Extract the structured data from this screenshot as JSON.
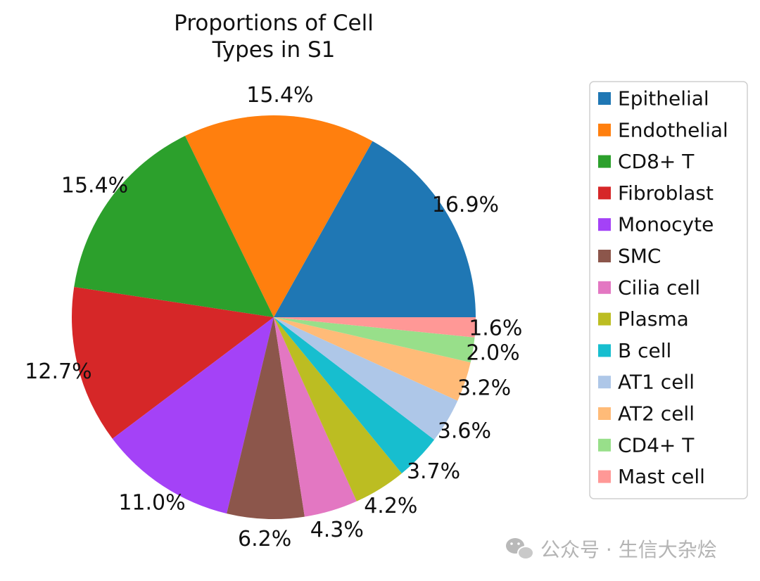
{
  "chart_data": {
    "type": "pie",
    "title": [
      "Proportions of Cell",
      "Types in S1"
    ],
    "start_angle_deg": 0,
    "direction": "counterclockwise",
    "legend_position": "right",
    "slices": [
      {
        "label": "Epithelial",
        "value": 16.9,
        "pct_label": "16.9%",
        "color": "#1f77b4"
      },
      {
        "label": "Endothelial",
        "value": 15.4,
        "pct_label": "15.4%",
        "color": "#ff7f0e"
      },
      {
        "label": "CD8+ T",
        "value": 15.4,
        "pct_label": "15.4%",
        "color": "#2ca02c"
      },
      {
        "label": "Fibroblast",
        "value": 12.7,
        "pct_label": "12.7%",
        "color": "#d62728"
      },
      {
        "label": "Monocyte",
        "value": 11.0,
        "pct_label": "11.0%",
        "color": "#a442f7"
      },
      {
        "label": "SMC",
        "value": 6.2,
        "pct_label": "6.2%",
        "color": "#8c564b"
      },
      {
        "label": "Cilia cell",
        "value": 4.3,
        "pct_label": "4.3%",
        "color": "#e377c2"
      },
      {
        "label": "Plasma",
        "value": 4.2,
        "pct_label": "4.2%",
        "color": "#bcbd22"
      },
      {
        "label": "B cell",
        "value": 3.7,
        "pct_label": "3.7%",
        "color": "#17becf"
      },
      {
        "label": "AT1 cell",
        "value": 3.6,
        "pct_label": "3.6%",
        "color": "#aec7e8"
      },
      {
        "label": "AT2 cell",
        "value": 3.2,
        "pct_label": "3.2%",
        "color": "#ffbb78"
      },
      {
        "label": "CD4+ T",
        "value": 2.0,
        "pct_label": "2.0%",
        "color": "#98df8a"
      },
      {
        "label": "Mast cell",
        "value": 1.6,
        "pct_label": "1.6%",
        "color": "#ff9896"
      }
    ]
  },
  "watermark": {
    "text": "公众号 · 生信大杂烩",
    "icon": "wechat-icon"
  }
}
